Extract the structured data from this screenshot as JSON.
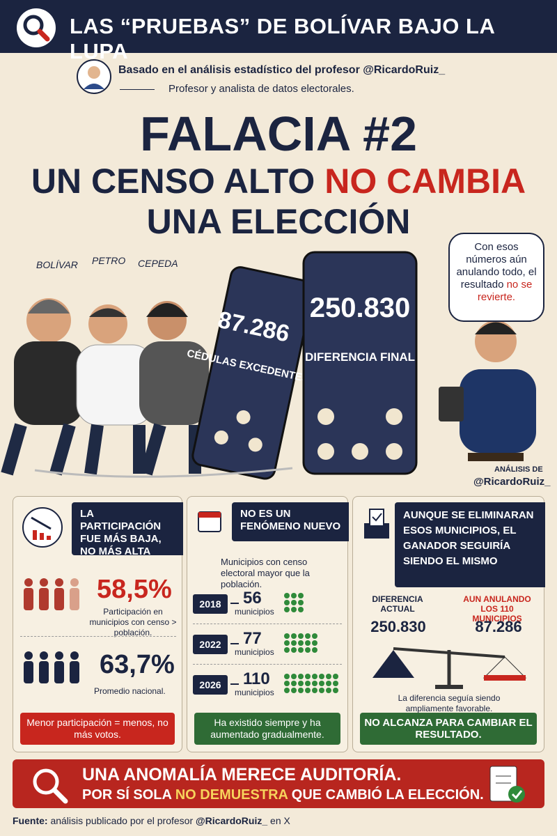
{
  "header": {
    "title": "LAS “PRUEBAS” DE BOLÍVAR BAJO LA LUPA"
  },
  "author": {
    "intro": "Basado en el análisis estadístico del profesor",
    "handle": "@RicardoRuiz_",
    "subtitle": "Profesor y analista de datos electorales."
  },
  "headline": {
    "kicker": "FALACIA #2",
    "line1": "UN CENSO ALTO",
    "line1_highlight": "NO CAMBIA",
    "line2": "UNA ELECCIÓN"
  },
  "illustration": {
    "names": [
      "BOLÍVAR",
      "PETRO",
      "CEPEDA"
    ],
    "domino_small": {
      "number": "87.286",
      "label": "CÉDULAS EXCEDENTES"
    },
    "domino_large": {
      "number": "250.830",
      "label": "DIFERENCIA FINAL"
    },
    "bubble": {
      "text": "Con esos números aún anulando todo, el resultado",
      "highlight": "no se revierte."
    },
    "credit": {
      "label": "ANÁLISIS DE",
      "handle": "@RicardoRuiz_"
    }
  },
  "panels": [
    {
      "title": "LA PARTICIPACIÓN FUE MÁS BAJA, NO MÁS ALTA",
      "stats": [
        {
          "value": "58,5%",
          "desc": "Participación en municipios con censo > población."
        },
        {
          "value": "63,7%",
          "desc": "Promedio nacional."
        }
      ],
      "footer": "Menor participación = menos, no más votos."
    },
    {
      "title": "NO ES UN FENÓMENO NUEVO",
      "intro": "Municipios con censo electoral mayor que la población.",
      "rows": [
        {
          "year": "2018",
          "count": "56",
          "unit": "municipios"
        },
        {
          "year": "2022",
          "count": "77",
          "unit": "municipios"
        },
        {
          "year": "2026",
          "count": "110",
          "unit": "municipios"
        }
      ],
      "footer": "Ha existido siempre y ha aumentado gradualmente."
    },
    {
      "title": "AUNQUE SE ELIMINARAN ESOS MUNICIPIOS, EL GANADOR SEGUIRÍA SIENDO EL MISMO",
      "left": {
        "label": "DIFERENCIA ACTUAL",
        "value": "250.830"
      },
      "right": {
        "label": "AUN ANULANDO LOS 110 MUNICIPIOS",
        "value": "87.286"
      },
      "note": "La diferencia seguía siendo ampliamente favorable.",
      "footer": "NO ALCANZA PARA CAMBIAR EL RESULTADO."
    }
  ],
  "banner": {
    "line1": "UNA ANOMALÍA MERECE AUDITORÍA.",
    "line2_a": "POR SÍ SOLA",
    "line2_b": "NO DEMUESTRA",
    "line2_c": "QUE CAMBIÓ LA ELECCIÓN."
  },
  "footer": {
    "label": "Fuente:",
    "text": "análisis publicado por el profesor",
    "handle": "@RicardoRuiz_",
    "tail": "en X"
  }
}
